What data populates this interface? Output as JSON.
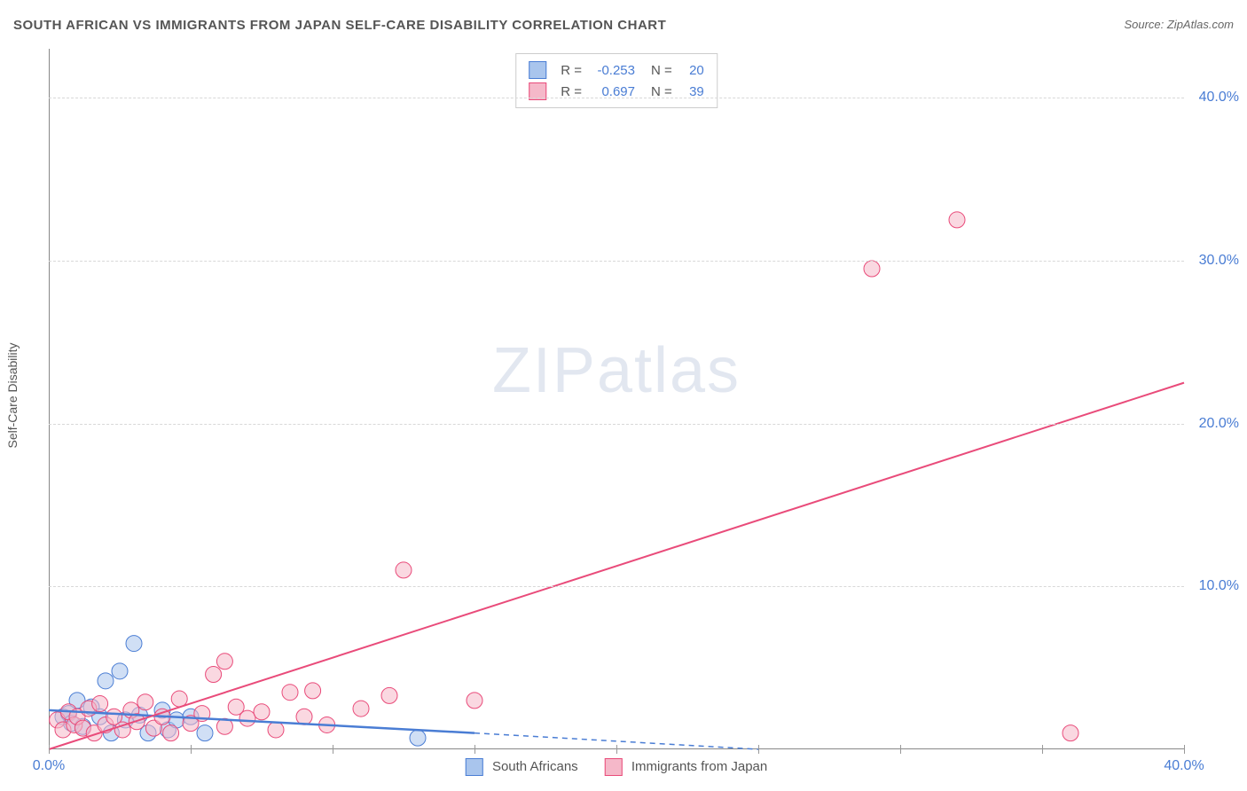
{
  "title": "SOUTH AFRICAN VS IMMIGRANTS FROM JAPAN SELF-CARE DISABILITY CORRELATION CHART",
  "source": "Source: ZipAtlas.com",
  "ylabel": "Self-Care Disability",
  "watermark_zip": "ZIP",
  "watermark_atlas": "atlas",
  "chart": {
    "type": "scatter",
    "xlim": [
      0,
      40
    ],
    "ylim": [
      0,
      43
    ],
    "x_ticks": [
      0,
      5,
      10,
      15,
      20,
      25,
      30,
      35,
      40
    ],
    "x_tick_labels": {
      "0": "0.0%",
      "40": "40.0%"
    },
    "y_ticks": [
      10,
      20,
      30,
      40
    ],
    "y_tick_labels": [
      "10.0%",
      "20.0%",
      "30.0%",
      "40.0%"
    ],
    "grid_color": "#d8d8d8",
    "axis_color": "#888888",
    "background_color": "#ffffff"
  },
  "series": [
    {
      "name": "South Africans",
      "legend_label": "South Africans",
      "color_fill": "#a9c5ed",
      "color_stroke": "#4a7dd4",
      "fill_opacity": 0.55,
      "marker_radius": 9,
      "R_label": "R =",
      "R": "-0.253",
      "N_label": "N =",
      "N": "20",
      "trend": {
        "x1": 0,
        "y1": 2.4,
        "x2": 15,
        "y2": 1.0,
        "solid_until_x": 15,
        "dash_to_x": 25,
        "dash_y": 0
      },
      "trend_width": 2.5,
      "points": [
        [
          0.5,
          2.0
        ],
        [
          0.7,
          2.2
        ],
        [
          0.8,
          1.6
        ],
        [
          1.0,
          3.0
        ],
        [
          1.2,
          1.4
        ],
        [
          1.5,
          2.6
        ],
        [
          1.8,
          2.0
        ],
        [
          2.0,
          4.2
        ],
        [
          2.2,
          1.0
        ],
        [
          2.5,
          4.8
        ],
        [
          2.7,
          1.8
        ],
        [
          3.0,
          6.5
        ],
        [
          3.2,
          2.1
        ],
        [
          3.5,
          1.0
        ],
        [
          4.0,
          2.4
        ],
        [
          4.2,
          1.2
        ],
        [
          4.5,
          1.8
        ],
        [
          5.0,
          2.0
        ],
        [
          5.5,
          1.0
        ],
        [
          13.0,
          0.7
        ]
      ]
    },
    {
      "name": "Immigrants from Japan",
      "legend_label": "Immigrants from Japan",
      "color_fill": "#f5b8c9",
      "color_stroke": "#e94b7a",
      "fill_opacity": 0.55,
      "marker_radius": 9,
      "R_label": "R =",
      "R": "0.697",
      "N_label": "N =",
      "N": "39",
      "trend": {
        "x1": 0,
        "y1": 0.0,
        "x2": 40,
        "y2": 22.5
      },
      "trend_width": 2,
      "points": [
        [
          0.3,
          1.8
        ],
        [
          0.5,
          1.2
        ],
        [
          0.7,
          2.3
        ],
        [
          0.9,
          1.5
        ],
        [
          1.0,
          2.0
        ],
        [
          1.2,
          1.3
        ],
        [
          1.4,
          2.5
        ],
        [
          1.6,
          1.0
        ],
        [
          1.8,
          2.8
        ],
        [
          2.0,
          1.5
        ],
        [
          2.3,
          2.0
        ],
        [
          2.6,
          1.2
        ],
        [
          2.9,
          2.4
        ],
        [
          3.1,
          1.7
        ],
        [
          3.4,
          2.9
        ],
        [
          3.7,
          1.3
        ],
        [
          4.0,
          2.0
        ],
        [
          4.3,
          1.0
        ],
        [
          4.6,
          3.1
        ],
        [
          5.0,
          1.6
        ],
        [
          5.4,
          2.2
        ],
        [
          5.8,
          4.6
        ],
        [
          6.2,
          1.4
        ],
        [
          6.2,
          5.4
        ],
        [
          6.6,
          2.6
        ],
        [
          7.0,
          1.9
        ],
        [
          7.5,
          2.3
        ],
        [
          8.0,
          1.2
        ],
        [
          8.5,
          3.5
        ],
        [
          9.0,
          2.0
        ],
        [
          9.3,
          3.6
        ],
        [
          9.8,
          1.5
        ],
        [
          11.0,
          2.5
        ],
        [
          12.0,
          3.3
        ],
        [
          12.5,
          11.0
        ],
        [
          15.0,
          3.0
        ],
        [
          29.0,
          29.5
        ],
        [
          32.0,
          32.5
        ],
        [
          36.0,
          1.0
        ]
      ]
    }
  ],
  "bottom_legend_labels": [
    "South Africans",
    "Immigrants from Japan"
  ]
}
